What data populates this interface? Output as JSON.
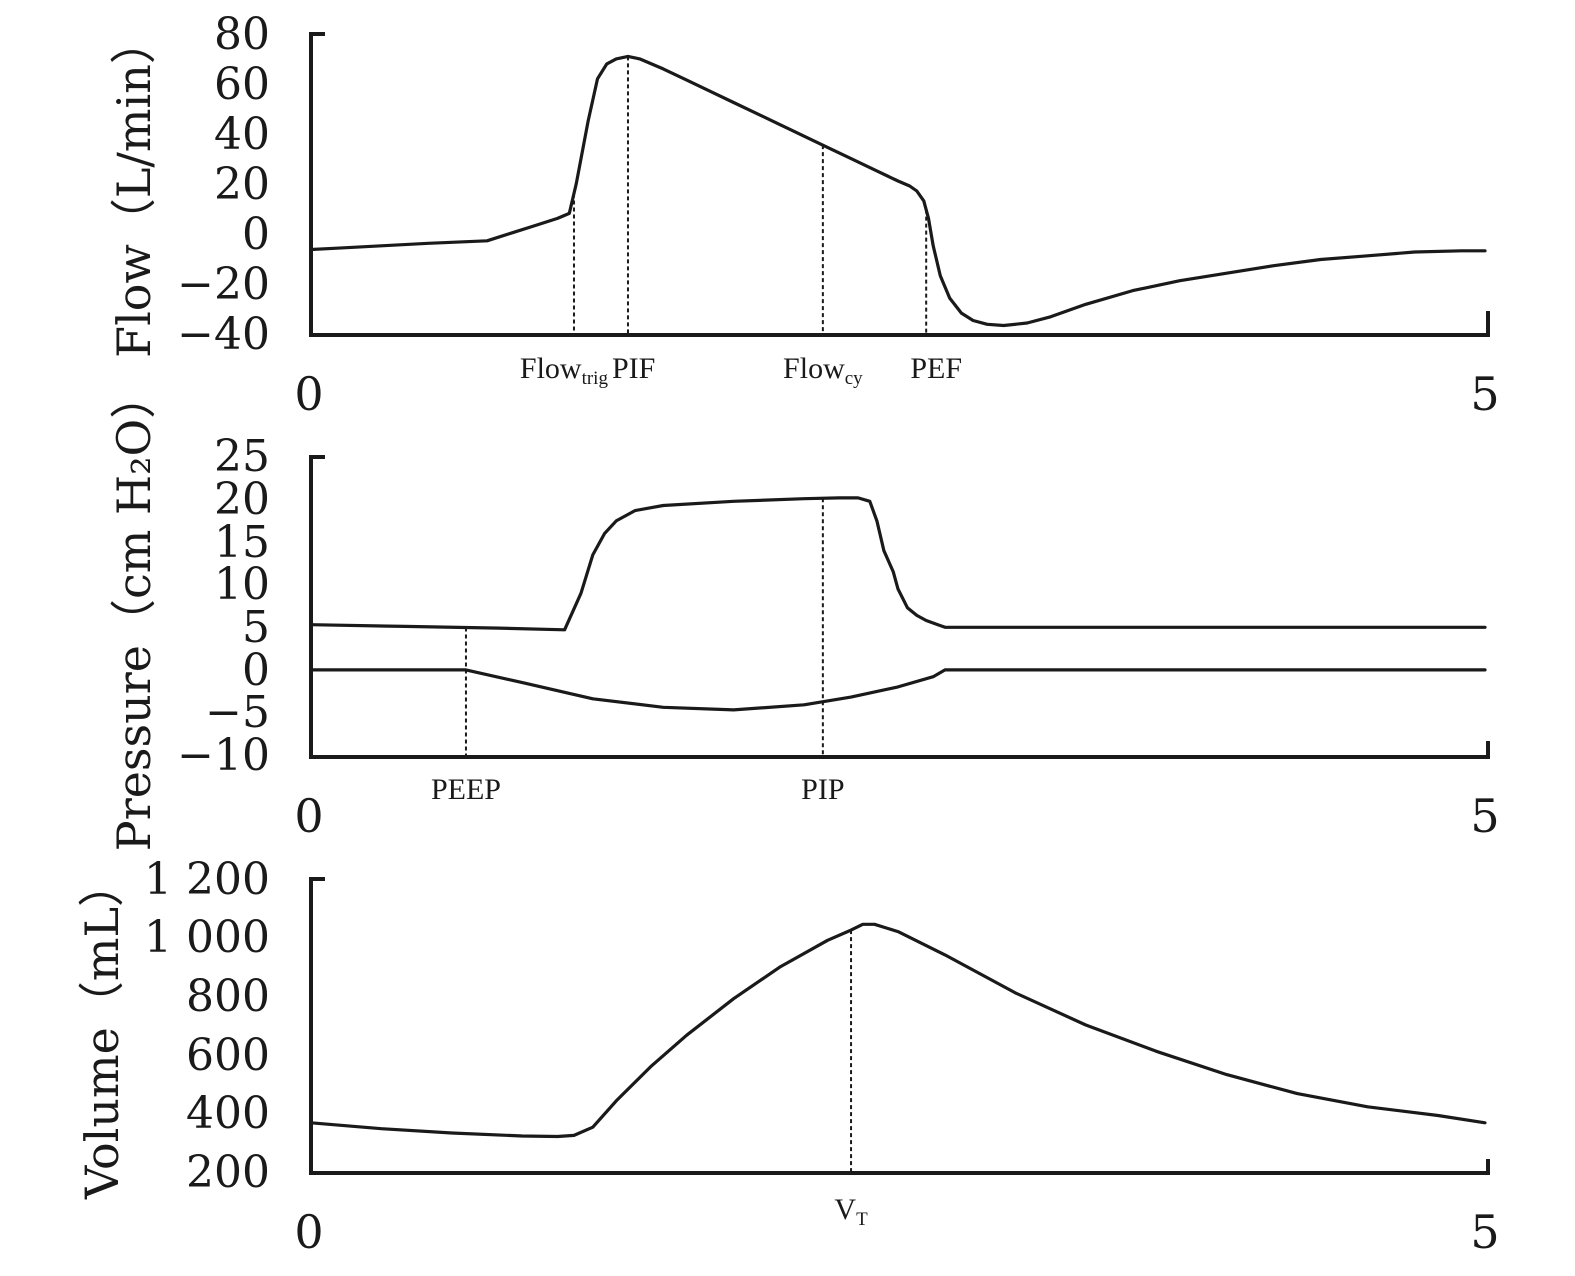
{
  "chart_data": [
    {
      "type": "line",
      "ylabel": "Flow（L/min）",
      "yticks": [
        "80",
        "60",
        "40",
        "20",
        "0",
        "−20",
        "−40"
      ],
      "ylim": [
        -40,
        80
      ],
      "xlim": [
        0,
        5
      ],
      "x_start_label": "0",
      "x_end_label": "5",
      "series": [
        {
          "x": [
            0,
            0.1,
            0.3,
            0.5,
            0.75,
            0.85,
            0.95,
            1.05,
            1.1,
            1.13,
            1.18,
            1.22,
            1.26,
            1.3,
            1.35,
            1.4,
            1.5,
            1.6,
            1.7,
            1.8,
            1.9,
            2.0,
            2.1,
            2.2,
            2.3,
            2.4,
            2.5,
            2.55,
            2.58,
            2.61,
            2.63,
            2.65,
            2.68,
            2.72,
            2.77,
            2.82,
            2.88,
            2.95,
            3.05,
            3.15,
            3.3,
            3.5,
            3.7,
            3.9,
            4.1,
            4.3,
            4.5,
            4.7,
            4.9,
            5.0
          ],
          "y": [
            -6.5,
            -6,
            -5,
            -4,
            -3,
            0,
            3,
            6,
            8,
            20,
            45,
            62,
            68,
            70,
            71,
            70,
            66,
            61.5,
            57,
            52.5,
            48,
            43.5,
            39,
            34.5,
            30,
            25.5,
            21,
            19,
            17,
            13,
            6,
            -5,
            -17,
            -26,
            -32,
            -35,
            -36.5,
            -37,
            -36,
            -33.5,
            -28.5,
            -23,
            -19,
            -16,
            -13,
            -10.5,
            -9,
            -7.5,
            -7,
            -7
          ]
        }
      ],
      "markers": [
        {
          "x": 1.12,
          "label": "Flow",
          "sub": "trig"
        },
        {
          "x": 1.35,
          "label": "PIF"
        },
        {
          "x": 2.18,
          "label": "Flow",
          "sub": "cy"
        },
        {
          "x": 2.62,
          "label": "PEF"
        }
      ]
    },
    {
      "type": "line",
      "ylabel": "Pressure（cm H₂O）",
      "yticks": [
        "25",
        "20",
        "15",
        "10",
        "5",
        "0",
        "−5",
        "−10"
      ],
      "ylim": [
        -10,
        25
      ],
      "xlim": [
        0,
        5
      ],
      "x_start_label": "0",
      "x_end_label": "5",
      "series": [
        {
          "x": [
            0,
            0.4,
            0.8,
            1.08,
            1.15,
            1.2,
            1.25,
            1.3,
            1.38,
            1.5,
            1.8,
            2.1,
            2.25,
            2.33,
            2.38,
            2.41,
            2.44,
            2.48,
            2.5,
            2.54,
            2.58,
            2.62,
            2.67,
            2.7,
            5.0
          ],
          "y": [
            5.3,
            5.1,
            4.9,
            4.7,
            9,
            13.5,
            16,
            17.5,
            18.7,
            19.3,
            19.8,
            20.1,
            20.2,
            20.2,
            19.8,
            17.5,
            14,
            11.5,
            9.5,
            7.3,
            6.4,
            5.8,
            5.3,
            5.0,
            5.0
          ]
        },
        {
          "x": [
            0,
            0.5,
            0.66,
            0.9,
            1.2,
            1.5,
            1.8,
            2.1,
            2.3,
            2.5,
            2.65,
            2.7,
            5.0
          ],
          "y": [
            0,
            0,
            0,
            -1.5,
            -3.4,
            -4.4,
            -4.7,
            -4.1,
            -3.2,
            -2,
            -0.8,
            0,
            0
          ]
        }
      ],
      "markers": [
        {
          "x": 0.66,
          "label": "PEEP"
        },
        {
          "x": 2.18,
          "label": "PIP"
        }
      ]
    },
    {
      "type": "line",
      "ylabel": "Volume（mL）",
      "yticks": [
        "1 200",
        "1 000",
        "800",
        "600",
        "400",
        "200"
      ],
      "ylim": [
        200,
        1200
      ],
      "xlim": [
        0,
        5
      ],
      "x_start_label": "0",
      "x_end_label": "5",
      "series": [
        {
          "x": [
            0,
            0.3,
            0.6,
            0.9,
            1.05,
            1.12,
            1.2,
            1.3,
            1.45,
            1.6,
            1.8,
            2.0,
            2.2,
            2.3,
            2.35,
            2.4,
            2.5,
            2.7,
            3.0,
            3.3,
            3.6,
            3.9,
            4.2,
            4.5,
            4.8,
            5.0
          ],
          "y": [
            365,
            345,
            330,
            320,
            318,
            322,
            350,
            440,
            560,
            665,
            790,
            900,
            990,
            1025,
            1045,
            1045,
            1020,
            940,
            810,
            700,
            610,
            530,
            465,
            420,
            390,
            365
          ]
        }
      ],
      "markers": [
        {
          "x": 2.3,
          "label": "V",
          "sub": "T"
        }
      ]
    }
  ]
}
